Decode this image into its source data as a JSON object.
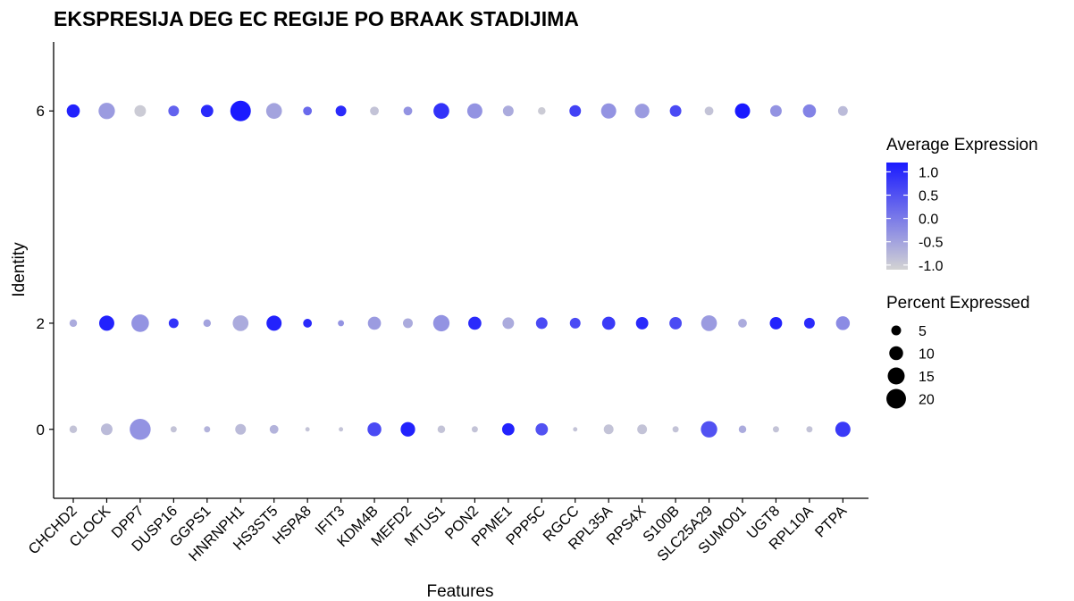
{
  "chart_data": {
    "type": "dotplot",
    "title": "EKSPRESIJA DEG EC REGIJE PO BRAAK STADIJIMA",
    "xlabel": "Features",
    "ylabel": "Identity",
    "identities": [
      "0",
      "2",
      "6"
    ],
    "features": [
      "CHCHD2",
      "CLOCK",
      "DPP7",
      "DUSP16",
      "GGPS1",
      "HNRNPH1",
      "HS3ST5",
      "HSPA8",
      "IFIT3",
      "KDM4B",
      "MEFD2",
      "MTUS1",
      "PON2",
      "PPME1",
      "PPP5C",
      "RGCC",
      "RPL35A",
      "RPS4X",
      "S100B",
      "SLC25A29",
      "SUMO01",
      "UGT8",
      "RPL10A",
      "PTPA"
    ],
    "avg_expression": {
      "6": [
        1.1,
        -0.4,
        -1.0,
        0.3,
        1.0,
        1.2,
        -0.5,
        0.2,
        1.0,
        -0.9,
        -0.3,
        0.9,
        -0.3,
        -0.6,
        -1.0,
        0.7,
        -0.3,
        -0.4,
        0.6,
        -0.9,
        1.2,
        -0.3,
        -0.1,
        -0.8
      ],
      "2": [
        -0.6,
        1.1,
        -0.3,
        0.9,
        -0.5,
        -0.6,
        1.1,
        1.0,
        -0.3,
        -0.4,
        -0.6,
        -0.3,
        1.0,
        -0.6,
        0.6,
        0.6,
        0.8,
        1.0,
        0.6,
        -0.4,
        -0.6,
        1.1,
        1.0,
        -0.2
      ],
      "0": [
        -0.9,
        -0.8,
        -0.3,
        -0.9,
        -0.7,
        -0.8,
        -0.7,
        -0.9,
        -0.9,
        0.6,
        1.1,
        -0.9,
        -0.9,
        1.1,
        0.5,
        -0.9,
        -0.9,
        -0.9,
        -0.9,
        0.5,
        -0.6,
        -0.9,
        -0.9,
        0.8
      ]
    },
    "percent_expressed": {
      "6": [
        9,
        14,
        7,
        6,
        8,
        22,
        13,
        4,
        6,
        4,
        4,
        13,
        12,
        6,
        3,
        7,
        12,
        11,
        7,
        4,
        12,
        7,
        9,
        5
      ],
      "2": [
        3,
        12,
        16,
        5,
        3,
        13,
        12,
        4,
        2,
        9,
        5,
        14,
        9,
        7,
        7,
        6,
        9,
        8,
        8,
        13,
        4,
        8,
        6,
        10
      ],
      "0": [
        3,
        7,
        23,
        2,
        2,
        6,
        4,
        1,
        1,
        10,
        11,
        3,
        2,
        8,
        8,
        1,
        5,
        5,
        2,
        14,
        3,
        2,
        2,
        12
      ]
    },
    "ylim": [
      -1.3,
      7.3
    ],
    "colorbar": {
      "title": "Average Expression",
      "ticks": [
        "1.0",
        "0.5",
        "0.0",
        "-0.5",
        "-1.0"
      ],
      "range": [
        -1.1,
        1.2
      ],
      "low_color": "#d3d3d3",
      "high_color": "#1a1aff"
    },
    "size_legend": {
      "title": "Percent Expressed",
      "values": [
        5,
        10,
        15,
        20
      ],
      "labels": [
        "5",
        "10",
        "15",
        "20"
      ]
    },
    "grid": false,
    "legend_position": "right"
  }
}
